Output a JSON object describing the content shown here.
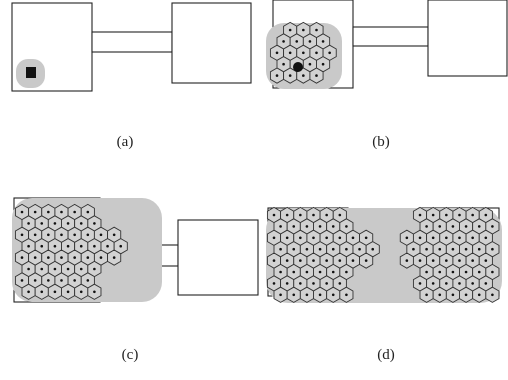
{
  "panels": [
    {
      "id": "a",
      "caption": "(a)"
    },
    {
      "id": "b",
      "caption": "(b)"
    },
    {
      "id": "c",
      "caption": "(c)"
    },
    {
      "id": "d",
      "caption": "(d)"
    }
  ],
  "colors": {
    "cell_fill": "#d2d2d2",
    "cell_stroke": "#333333",
    "blob": "#c9c9c9",
    "wall": "#222222"
  }
}
